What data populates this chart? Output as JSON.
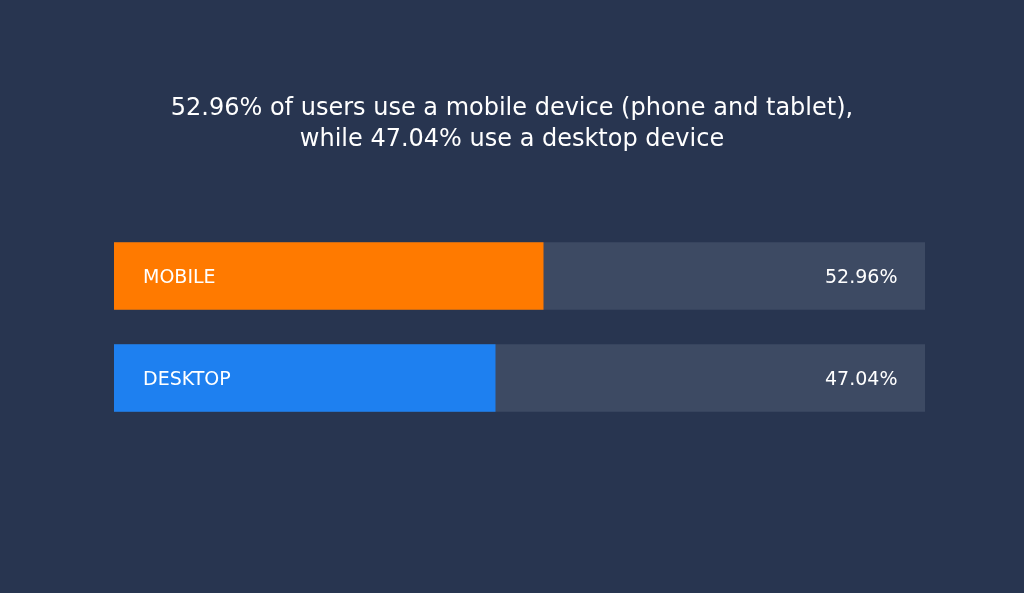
{
  "chart_data": {
    "type": "bar",
    "orientation": "horizontal",
    "title": "52.96% of users use a mobile device (phone and tablet),\nwhile 47.04% use a desktop device",
    "categories": [
      "MOBILE",
      "DESKTOP"
    ],
    "values": [
      52.96,
      47.04
    ],
    "colors": [
      "#ff7a00",
      "#1e80f0"
    ],
    "value_labels": [
      "52.96%",
      "47.04%"
    ],
    "xlim": [
      0,
      100
    ],
    "tick_labels": "y",
    "grid": false,
    "legend": false
  }
}
